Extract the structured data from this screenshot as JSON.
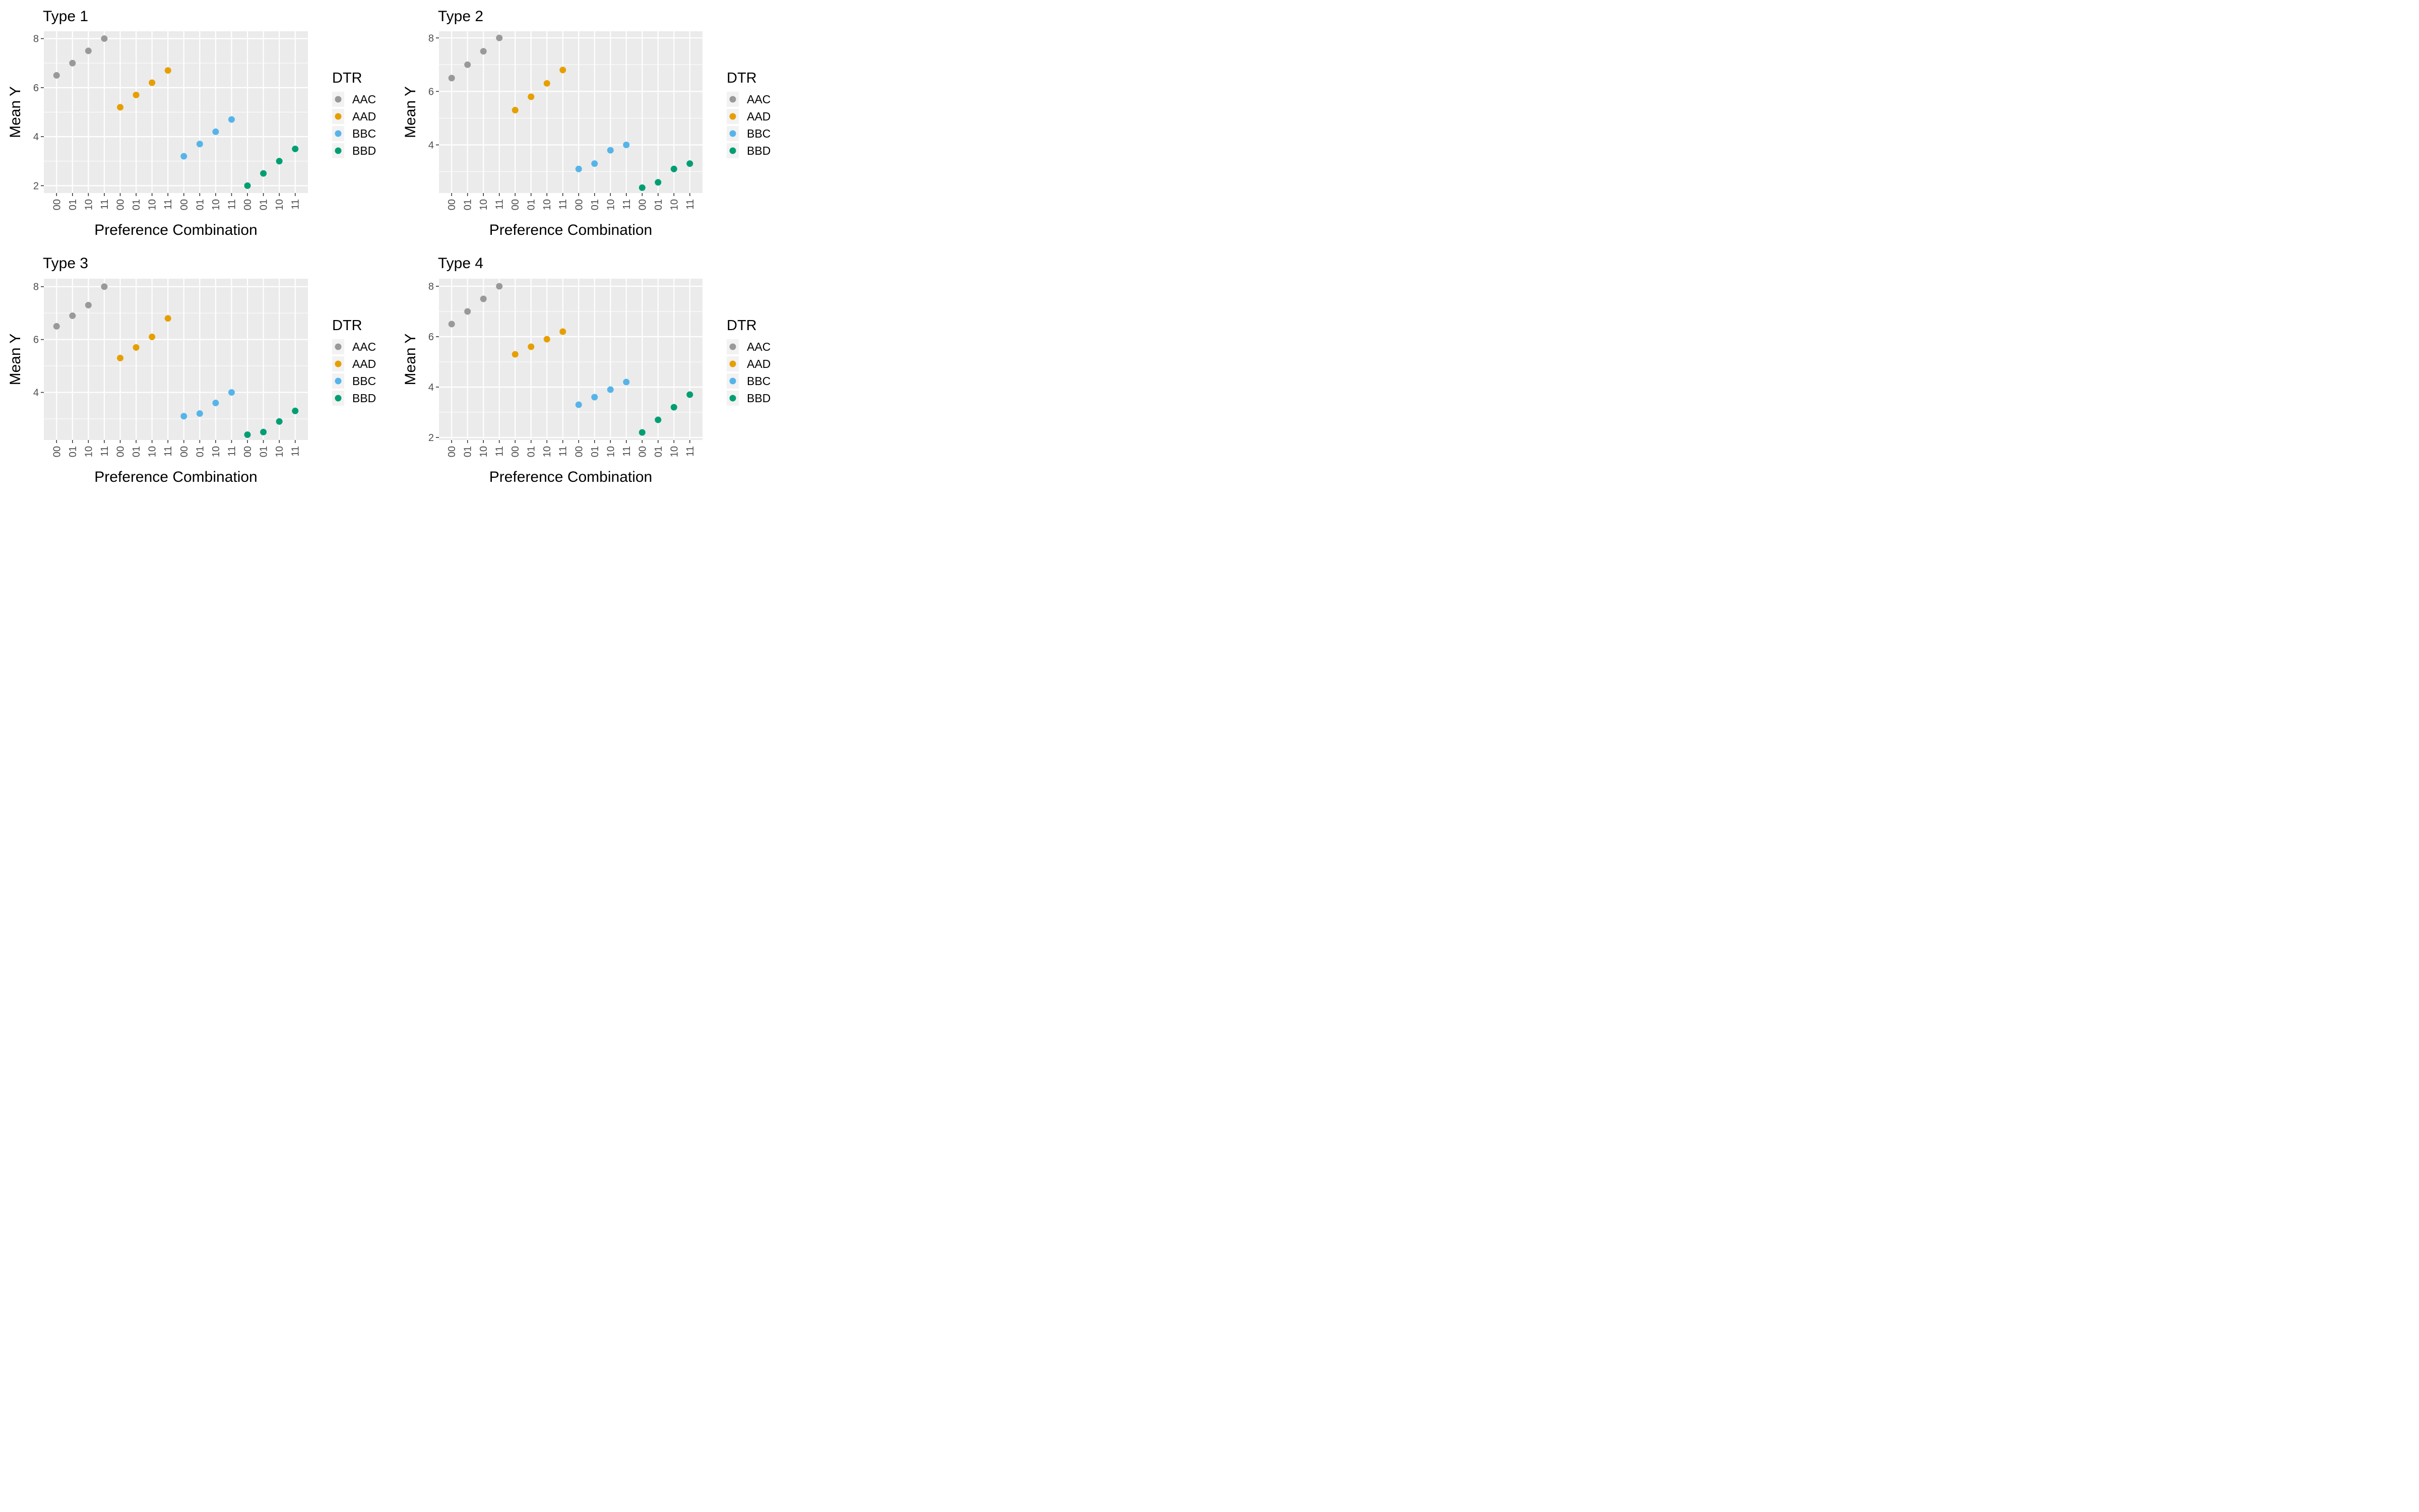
{
  "chart_data": [
    {
      "type": "scatter",
      "title": "Type 1",
      "xlabel": "Preference Combination",
      "ylabel": "Mean Y",
      "x_ticks": [
        "00",
        "01",
        "10",
        "11",
        "00",
        "01",
        "10",
        "11",
        "00",
        "01",
        "10",
        "11",
        "00",
        "01",
        "10",
        "11"
      ],
      "y_ticks": [
        "2",
        "4",
        "6",
        "8"
      ],
      "ylim": [
        1.7,
        8.3
      ],
      "legend": {
        "title": "DTR",
        "position": "right"
      },
      "grid": true,
      "series": [
        {
          "name": "AAC",
          "color": "#999999",
          "x_index": [
            1,
            2,
            3,
            4
          ],
          "values": [
            6.5,
            7.0,
            7.5,
            8.0
          ]
        },
        {
          "name": "AAD",
          "color": "#E69F00",
          "x_index": [
            5,
            6,
            7,
            8
          ],
          "values": [
            5.2,
            5.7,
            6.2,
            6.7
          ]
        },
        {
          "name": "BBC",
          "color": "#56B4E9",
          "x_index": [
            9,
            10,
            11,
            12
          ],
          "values": [
            3.2,
            3.7,
            4.2,
            4.7
          ]
        },
        {
          "name": "BBD",
          "color": "#009E73",
          "x_index": [
            13,
            14,
            15,
            16
          ],
          "values": [
            2.0,
            2.5,
            3.0,
            3.5
          ]
        }
      ]
    },
    {
      "type": "scatter",
      "title": "Type 2",
      "xlabel": "Preference Combination",
      "ylabel": "Mean Y",
      "x_ticks": [
        "00",
        "01",
        "10",
        "11",
        "00",
        "01",
        "10",
        "11",
        "00",
        "01",
        "10",
        "11",
        "00",
        "01",
        "10",
        "11"
      ],
      "y_ticks": [
        "4",
        "6",
        "8"
      ],
      "ylim": [
        2.2,
        8.25
      ],
      "legend": {
        "title": "DTR",
        "position": "right"
      },
      "grid": true,
      "series": [
        {
          "name": "AAC",
          "color": "#999999",
          "x_index": [
            1,
            2,
            3,
            4
          ],
          "values": [
            6.5,
            7.0,
            7.5,
            8.0
          ]
        },
        {
          "name": "AAD",
          "color": "#E69F00",
          "x_index": [
            5,
            6,
            7,
            8
          ],
          "values": [
            5.3,
            5.8,
            6.3,
            6.8
          ]
        },
        {
          "name": "BBC",
          "color": "#56B4E9",
          "x_index": [
            9,
            10,
            11,
            12
          ],
          "values": [
            3.1,
            3.3,
            3.8,
            4.0
          ]
        },
        {
          "name": "BBD",
          "color": "#009E73",
          "x_index": [
            13,
            14,
            15,
            16
          ],
          "values": [
            2.4,
            2.6,
            3.1,
            3.3
          ]
        }
      ]
    },
    {
      "type": "scatter",
      "title": "Type 3",
      "xlabel": "Preference Combination",
      "ylabel": "Mean Y",
      "x_ticks": [
        "00",
        "01",
        "10",
        "11",
        "00",
        "01",
        "10",
        "11",
        "00",
        "01",
        "10",
        "11",
        "00",
        "01",
        "10",
        "11"
      ],
      "y_ticks": [
        "4",
        "6",
        "8"
      ],
      "ylim": [
        2.2,
        8.3
      ],
      "legend": {
        "title": "DTR",
        "position": "right"
      },
      "grid": true,
      "series": [
        {
          "name": "AAC",
          "color": "#999999",
          "x_index": [
            1,
            2,
            3,
            4
          ],
          "values": [
            6.5,
            6.9,
            7.3,
            8.0
          ]
        },
        {
          "name": "AAD",
          "color": "#E69F00",
          "x_index": [
            5,
            6,
            7,
            8
          ],
          "values": [
            5.3,
            5.7,
            6.1,
            6.8
          ]
        },
        {
          "name": "BBC",
          "color": "#56B4E9",
          "x_index": [
            9,
            10,
            11,
            12
          ],
          "values": [
            3.1,
            3.2,
            3.6,
            4.0
          ]
        },
        {
          "name": "BBD",
          "color": "#009E73",
          "x_index": [
            13,
            14,
            15,
            16
          ],
          "values": [
            2.4,
            2.5,
            2.9,
            3.3
          ]
        }
      ]
    },
    {
      "type": "scatter",
      "title": "Type 4",
      "xlabel": "Preference Combination",
      "ylabel": "Mean Y",
      "x_ticks": [
        "00",
        "01",
        "10",
        "11",
        "00",
        "01",
        "10",
        "11",
        "00",
        "01",
        "10",
        "11",
        "00",
        "01",
        "10",
        "11"
      ],
      "y_ticks": [
        "2",
        "4",
        "6",
        "8"
      ],
      "ylim": [
        1.9,
        8.3
      ],
      "legend": {
        "title": "DTR",
        "position": "right"
      },
      "grid": true,
      "series": [
        {
          "name": "AAC",
          "color": "#999999",
          "x_index": [
            1,
            2,
            3,
            4
          ],
          "values": [
            6.5,
            7.0,
            7.5,
            8.0
          ]
        },
        {
          "name": "AAD",
          "color": "#E69F00",
          "x_index": [
            5,
            6,
            7,
            8
          ],
          "values": [
            5.3,
            5.6,
            5.9,
            6.2
          ]
        },
        {
          "name": "BBC",
          "color": "#56B4E9",
          "x_index": [
            9,
            10,
            11,
            12
          ],
          "values": [
            3.3,
            3.6,
            3.9,
            4.2
          ]
        },
        {
          "name": "BBD",
          "color": "#009E73",
          "x_index": [
            13,
            14,
            15,
            16
          ],
          "values": [
            2.2,
            2.7,
            3.2,
            3.7
          ]
        }
      ]
    }
  ]
}
